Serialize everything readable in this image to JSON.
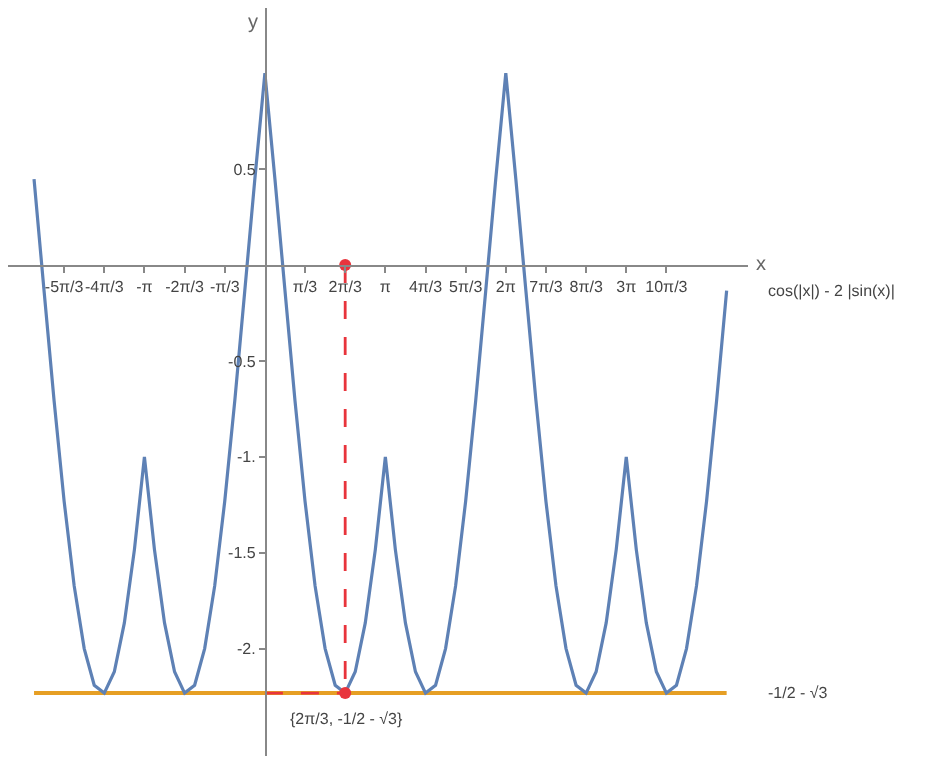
{
  "chart_data": {
    "type": "line",
    "xlabel": "x",
    "ylabel": "y",
    "xlim": [
      -6.7,
      12.6
    ],
    "ylim": [
      -2.56,
      1.34
    ],
    "xticks": [
      {
        "value": -5.236,
        "label": "-5π/3"
      },
      {
        "value": -4.189,
        "label": "-4π/3"
      },
      {
        "value": -3.142,
        "label": "-π"
      },
      {
        "value": -2.094,
        "label": "-2π/3"
      },
      {
        "value": -1.047,
        "label": "-π/3"
      },
      {
        "value": 1.047,
        "label": "π/3"
      },
      {
        "value": 2.094,
        "label": "2π/3"
      },
      {
        "value": 3.142,
        "label": "π"
      },
      {
        "value": 4.189,
        "label": "4π/3"
      },
      {
        "value": 5.236,
        "label": "5π/3"
      },
      {
        "value": 6.283,
        "label": "2π"
      },
      {
        "value": 7.33,
        "label": "7π/3"
      },
      {
        "value": 8.378,
        "label": "8π/3"
      },
      {
        "value": 9.425,
        "label": "3π"
      },
      {
        "value": 10.472,
        "label": "10π/3"
      }
    ],
    "yticks": [
      {
        "value": -2,
        "label": "-2."
      },
      -1.5,
      {
        "value": -1,
        "label": "-1."
      },
      -0.5,
      0.5
    ],
    "grid": false,
    "legend": false,
    "series": [
      {
        "name": "cos(|x|) - 2 |sin(x)|",
        "color": "#5e81b5",
        "line_style": "solid",
        "marker": "none",
        "x": [
          -6.021,
          -5.76,
          -5.498,
          -5.236,
          -4.974,
          -4.712,
          -4.451,
          -4.189,
          -3.927,
          -3.665,
          -3.403,
          -3.142,
          -2.88,
          -2.618,
          -2.356,
          -2.094,
          -1.833,
          -1.571,
          -1.309,
          -1.047,
          -0.785,
          -0.524,
          -0.262,
          0,
          0.262,
          0.524,
          0.785,
          1.047,
          1.309,
          1.571,
          1.833,
          2.094,
          2.356,
          2.618,
          2.88,
          3.142,
          3.403,
          3.665,
          3.927,
          4.189,
          4.451,
          4.712,
          4.974,
          5.236,
          5.498,
          5.76,
          6.021,
          6.283,
          6.545,
          6.807,
          7.069,
          7.33,
          7.592,
          7.854,
          8.116,
          8.378,
          8.639,
          8.901,
          9.163,
          9.425,
          9.687,
          9.948,
          10.21,
          10.472,
          10.734,
          10.996,
          11.257,
          11.519,
          11.781,
          12.043
        ],
        "values": [
          0.448,
          -0.134,
          -0.707,
          -1.232,
          -1.673,
          -2,
          -2.191,
          -2.232,
          -2.121,
          -1.866,
          -1.484,
          -1,
          -1.484,
          -1.866,
          -2.121,
          -2.232,
          -2.191,
          -2,
          -1.673,
          -1.232,
          -0.707,
          -0.134,
          0.448,
          1,
          0.448,
          -0.134,
          -0.707,
          -1.232,
          -1.673,
          -2,
          -2.191,
          -2.232,
          -2.121,
          -1.866,
          -1.484,
          -1,
          -1.484,
          -1.866,
          -2.121,
          -2.232,
          -2.191,
          -2,
          -1.673,
          -1.232,
          -0.707,
          -0.134,
          0.448,
          1,
          0.448,
          -0.134,
          -0.707,
          -1.232,
          -1.673,
          -2,
          -2.191,
          -2.232,
          -2.121,
          -1.866,
          -1.484,
          -1,
          -1.484,
          -1.866,
          -2.121,
          -2.232,
          -2.191,
          -2,
          -1.673,
          -1.232,
          -0.707,
          -0.134
        ]
      },
      {
        "color": "#e8343c",
        "line_style": "dashed",
        "marker": "none",
        "x": [
          2.094,
          2.094
        ],
        "values": [
          0,
          -2.232
        ]
      },
      {
        "color": "#e8343c",
        "line_style": "dashed",
        "marker": "none",
        "x": [
          0,
          2.094
        ],
        "values": [
          -2.232,
          -2.232
        ]
      },
      {
        "type": "scatter",
        "color": "#e8343c",
        "marker": "circle",
        "x": [
          2.094,
          2.094
        ],
        "values": [
          0,
          -2.232
        ]
      }
    ],
    "ref_lines": [
      {
        "axis": "y",
        "value": -2.232,
        "label": "-1/2 - √3",
        "color": "#e69f24"
      }
    ],
    "annotations": [
      {
        "text": "{2π/3, -1/2 - √3}",
        "x": 2.094,
        "y": -2.232
      }
    ]
  }
}
